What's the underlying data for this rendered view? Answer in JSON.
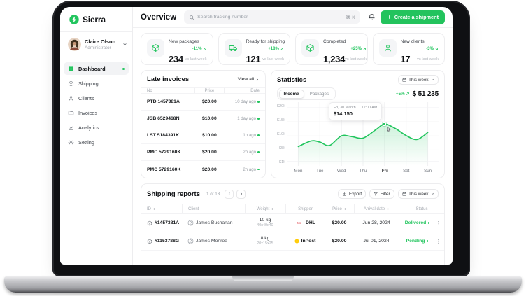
{
  "brand": {
    "name": "Sierra"
  },
  "user": {
    "name": "Claire Olson",
    "role": "Administrator"
  },
  "sidebar": {
    "items": [
      {
        "label": "Dashboard",
        "icon": "grid",
        "active": true
      },
      {
        "label": "Shipping",
        "icon": "package",
        "active": false
      },
      {
        "label": "Clients",
        "icon": "person",
        "active": false
      },
      {
        "label": "Invoices",
        "icon": "folder",
        "active": false
      },
      {
        "label": "Analytics",
        "icon": "analytics",
        "active": false
      },
      {
        "label": "Setting",
        "icon": "gear",
        "active": false
      }
    ]
  },
  "topbar": {
    "title": "Overview",
    "search_placeholder": "Search tracking number",
    "search_shortcut": "⌘ K",
    "create_button_label": "Create a shipment"
  },
  "stats_cards": [
    {
      "label": "New packages",
      "value": "234",
      "change": "-11%",
      "trend": "down",
      "note": "vs last week",
      "icon": "package"
    },
    {
      "label": "Ready for shipping",
      "value": "121",
      "change": "+18%",
      "trend": "up",
      "note": "vs last week",
      "icon": "truck"
    },
    {
      "label": "Completed",
      "value": "1,234",
      "change": "+25%",
      "trend": "up",
      "note": "vs last week",
      "icon": "package"
    },
    {
      "label": "New clients",
      "value": "17",
      "change": "-3%",
      "trend": "down",
      "note": "vs last week",
      "icon": "person"
    }
  ],
  "late_invoices": {
    "title": "Late invoices",
    "view_all_label": "View all",
    "columns": [
      "No",
      "Price",
      "Date"
    ],
    "rows": [
      {
        "no": "PTD 1457381A",
        "price": "$20.00",
        "date": "10 day ago"
      },
      {
        "no": "JSB 6529468N",
        "price": "$10.00",
        "date": "1 day ago"
      },
      {
        "no": "LST 5184391K",
        "price": "$10.00",
        "date": "1h ago"
      },
      {
        "no": "PMC 5729160K",
        "price": "$20.00",
        "date": "2h ago"
      },
      {
        "no": "PMC 5729160K",
        "price": "$20.00",
        "date": "2h ago"
      }
    ]
  },
  "statistics": {
    "title": "Statistics",
    "period_label": "This week",
    "tabs": [
      "Income",
      "Packages"
    ],
    "active_tab": "Income",
    "change": "+5%",
    "total": "$ 51 235"
  },
  "chart_data": {
    "type": "area",
    "title": "Statistics — Income, this week",
    "x": [
      "Mon",
      "Tue",
      "Wed",
      "Thu",
      "Fri",
      "Sat",
      "Sun"
    ],
    "series": [
      {
        "name": "Income",
        "values_usd": [
          6200,
          7800,
          10000,
          9200,
          14150,
          10100,
          11200
        ]
      }
    ],
    "y_ticks": [
      "$20k",
      "$15k",
      "$10k",
      "$5k",
      "$1k"
    ],
    "ylim_usd": [
      0,
      21000
    ],
    "grid": true,
    "line_color": "#22c55e",
    "curve_points_k": [
      [
        0,
        6.2
      ],
      [
        0.6,
        8.2
      ],
      [
        1,
        7.8
      ],
      [
        1.45,
        6.6
      ],
      [
        2,
        10.0
      ],
      [
        2.5,
        9.7
      ],
      [
        3,
        9.2
      ],
      [
        3.6,
        12.2
      ],
      [
        4,
        14.15
      ],
      [
        4.5,
        12.6
      ],
      [
        5,
        10.1
      ],
      [
        5.5,
        8.7
      ],
      [
        6,
        11.2
      ]
    ],
    "highlight": {
      "day": "Fri",
      "point": [
        4,
        14.15
      ],
      "tooltip_date": "Fri, 30 March",
      "tooltip_time": "12:00 AM",
      "tooltip_value": "$14 150"
    }
  },
  "shipping_reports": {
    "title": "Shipping reports",
    "pagination": "1 of 13",
    "export_label": "Export",
    "filter_label": "Filter",
    "period_label": "This week",
    "columns": [
      {
        "label": "ID",
        "sortable": true
      },
      {
        "label": "Client",
        "sortable": false
      },
      {
        "label": "Weight",
        "sortable": true
      },
      {
        "label": "Shipper",
        "sortable": false
      },
      {
        "label": "Price",
        "sortable": true
      },
      {
        "label": "Arrival date",
        "sortable": true
      },
      {
        "label": "Status",
        "sortable": false
      }
    ],
    "rows": [
      {
        "id": "#1457381A",
        "client": "James Buchanan",
        "weight": "10 kg",
        "dimensions": "40x40x40",
        "shipper": "DHL",
        "shipper_logo": "dhl-logo",
        "price": "$20.00",
        "arrival_date": "Jun 28, 2024",
        "status": "Delivered"
      },
      {
        "id": "#1153788G",
        "client": "James Monroe",
        "weight": "8 kg",
        "dimensions": "20x15x25",
        "shipper": "InPost",
        "shipper_logo": "inpost-logo",
        "price": "$20.00",
        "arrival_date": "Jul 01, 2024",
        "status": "Pending"
      }
    ]
  },
  "colors": {
    "accent_green": "#22c55e",
    "status_delivered": "#22c55e",
    "status_pending": "#22c55e",
    "dhl_red": "#d40511",
    "inpost_yellow": "#ffcb04"
  }
}
